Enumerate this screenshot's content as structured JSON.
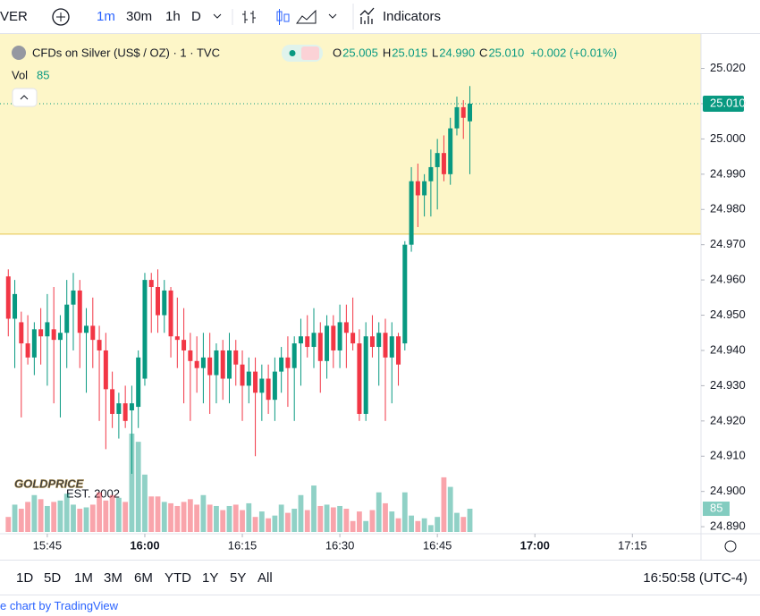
{
  "toolbar": {
    "symbol_cut": "VER",
    "intervals": [
      "1m",
      "30m",
      "1h",
      "D"
    ],
    "indicators": "Indicators"
  },
  "legend": {
    "title": "CFDs on Silver (US$ / OZ) · 1 · TVC",
    "o_key": "O",
    "o": "25.005",
    "h_key": "H",
    "h": "25.015",
    "l_key": "L",
    "l": "24.990",
    "c_key": "C",
    "c": "25.010",
    "change": "+0.002 (+0.01%)",
    "vol_key": "Vol"
  },
  "watermark": {
    "name": "GOLDPRICE",
    "est": "EST. 2002"
  },
  "ranges": [
    "1D",
    "5D",
    "1M",
    "3M",
    "6M",
    "YTD",
    "1Y",
    "5Y",
    "All"
  ],
  "clock": "16:50:58 (UTC-4)",
  "footer": "e chart by TradingView",
  "chart_data": {
    "type": "candlestick",
    "x": [
      "15:39",
      "15:40",
      "15:41",
      "15:42",
      "15:43",
      "15:44",
      "15:45",
      "15:46",
      "15:47",
      "15:48",
      "15:49",
      "15:50",
      "15:51",
      "15:52",
      "15:53",
      "15:54",
      "15:55",
      "15:56",
      "15:57",
      "15:58",
      "15:59",
      "16:00",
      "16:01",
      "16:02",
      "16:03",
      "16:04",
      "16:05",
      "16:06",
      "16:07",
      "16:08",
      "16:09",
      "16:10",
      "16:11",
      "16:12",
      "16:13",
      "16:14",
      "16:15",
      "16:16",
      "16:17",
      "16:18",
      "16:19",
      "16:20",
      "16:21",
      "16:22",
      "16:23",
      "16:24",
      "16:25",
      "16:26",
      "16:27",
      "16:28",
      "16:29",
      "16:30",
      "16:31",
      "16:32",
      "16:33",
      "16:34",
      "16:35",
      "16:36",
      "16:37",
      "16:38",
      "16:39",
      "16:40",
      "16:41",
      "16:42",
      "16:43",
      "16:44",
      "16:45",
      "16:46",
      "16:47",
      "16:48",
      "16:49",
      "16:50"
    ],
    "open": [
      24.961,
      24.949,
      24.948,
      24.942,
      24.938,
      24.946,
      24.944,
      24.946,
      24.943,
      24.945,
      24.953,
      24.957,
      24.945,
      24.947,
      24.943,
      24.94,
      24.929,
      24.922,
      24.925,
      24.923,
      24.924,
      24.932,
      24.96,
      24.958,
      24.95,
      24.957,
      24.944,
      24.943,
      24.94,
      24.937,
      24.935,
      24.938,
      24.933,
      24.94,
      24.932,
      24.94,
      24.936,
      24.93,
      24.934,
      24.928,
      24.932,
      24.926,
      24.934,
      24.938,
      24.935,
      24.942,
      24.944,
      24.941,
      24.945,
      24.937,
      24.947,
      24.94,
      24.948,
      24.945,
      24.942,
      24.922,
      24.944,
      24.941,
      24.945,
      24.938,
      24.944,
      24.942,
      24.97,
      24.988,
      24.984,
      24.988,
      24.992,
      24.996,
      24.99,
      25.003,
      25.009,
      25.005
    ],
    "high": [
      24.963,
      24.96,
      24.951,
      24.95,
      24.948,
      24.952,
      24.956,
      24.958,
      24.95,
      24.96,
      24.962,
      24.96,
      24.952,
      24.955,
      24.947,
      24.945,
      24.934,
      24.928,
      24.93,
      24.93,
      24.94,
      24.962,
      24.962,
      24.963,
      24.96,
      24.958,
      24.955,
      24.952,
      24.945,
      24.944,
      24.945,
      24.945,
      24.942,
      24.943,
      24.945,
      24.943,
      24.94,
      24.938,
      24.938,
      24.936,
      24.936,
      24.938,
      24.941,
      24.944,
      24.944,
      24.949,
      24.95,
      24.952,
      24.948,
      24.95,
      24.95,
      24.953,
      24.953,
      24.955,
      24.946,
      24.948,
      24.95,
      24.948,
      24.949,
      24.948,
      24.945,
      24.971,
      24.992,
      24.993,
      24.99,
      24.997,
      25.0,
      25.001,
      25.006,
      25.012,
      25.011,
      25.015
    ],
    "low": [
      24.944,
      24.935,
      24.921,
      24.936,
      24.933,
      24.936,
      24.93,
      24.925,
      24.921,
      24.935,
      24.94,
      24.935,
      24.928,
      24.935,
      24.92,
      24.912,
      24.918,
      24.915,
      24.918,
      24.905,
      24.918,
      24.93,
      24.945,
      24.945,
      24.945,
      24.938,
      24.935,
      24.925,
      24.92,
      24.928,
      24.925,
      24.922,
      24.925,
      24.926,
      24.925,
      24.93,
      24.92,
      24.925,
      24.91,
      24.92,
      24.922,
      24.92,
      24.928,
      24.924,
      24.92,
      24.93,
      24.938,
      24.935,
      24.928,
      24.932,
      24.935,
      24.935,
      24.935,
      24.94,
      24.92,
      24.92,
      24.938,
      24.93,
      24.92,
      24.925,
      24.93,
      24.94,
      24.968,
      24.975,
      24.978,
      24.978,
      24.98,
      24.988,
      24.987,
      25.001,
      25.0,
      24.99
    ],
    "close": [
      24.949,
      24.956,
      24.942,
      24.938,
      24.946,
      24.944,
      24.948,
      24.943,
      24.945,
      24.953,
      24.957,
      24.945,
      24.947,
      24.943,
      24.94,
      24.929,
      24.922,
      24.925,
      24.92,
      24.925,
      24.938,
      24.96,
      24.958,
      24.95,
      24.957,
      24.944,
      24.943,
      24.94,
      24.937,
      24.935,
      24.938,
      24.933,
      24.94,
      24.932,
      24.94,
      24.936,
      24.93,
      24.934,
      24.928,
      24.932,
      24.926,
      24.934,
      24.938,
      24.935,
      24.942,
      24.944,
      24.941,
      24.945,
      24.937,
      24.947,
      24.94,
      24.948,
      24.945,
      24.942,
      24.922,
      24.944,
      24.941,
      24.945,
      24.938,
      24.944,
      24.936,
      24.97,
      24.988,
      24.984,
      24.988,
      24.992,
      24.996,
      24.99,
      25.003,
      25.009,
      25.006,
      25.01
    ],
    "volume": [
      55,
      100,
      85,
      110,
      135,
      120,
      95,
      110,
      115,
      140,
      100,
      85,
      90,
      100,
      145,
      115,
      135,
      125,
      110,
      360,
      330,
      210,
      130,
      130,
      110,
      105,
      95,
      110,
      120,
      100,
      135,
      100,
      95,
      80,
      95,
      100,
      80,
      105,
      55,
      75,
      50,
      60,
      100,
      70,
      85,
      135,
      80,
      170,
      95,
      100,
      90,
      95,
      85,
      40,
      75,
      40,
      80,
      145,
      105,
      75,
      50,
      145,
      60,
      40,
      50,
      25,
      55,
      200,
      165,
      70,
      55,
      85
    ],
    "up_color": "#089981",
    "down_color": "#f23645",
    "ylim": [
      24.888,
      25.028
    ],
    "yticks": [
      {
        "value": 24.89,
        "label": "24.890"
      },
      {
        "value": 24.9,
        "label": "24.900"
      },
      {
        "value": 24.91,
        "label": "24.910"
      },
      {
        "value": 24.92,
        "label": "24.920"
      },
      {
        "value": 24.93,
        "label": "24.930"
      },
      {
        "value": 24.94,
        "label": "24.940"
      },
      {
        "value": 24.95,
        "label": "24.950"
      },
      {
        "value": 24.96,
        "label": "24.960"
      },
      {
        "value": 24.97,
        "label": "24.970"
      },
      {
        "value": 24.98,
        "label": "24.980"
      },
      {
        "value": 24.99,
        "label": "24.990"
      },
      {
        "value": 25.0,
        "label": "25.000"
      },
      {
        "value": 25.01,
        "label": "25.010"
      },
      {
        "value": 25.02,
        "label": "25.020"
      }
    ],
    "xlim": [
      "15:38",
      "17:25"
    ],
    "xticks": [
      "15:45",
      "16:00",
      "16:15",
      "16:30",
      "16:45",
      "17:00",
      "17:15"
    ],
    "volume_lim": [
      0,
      1800
    ],
    "last_price": {
      "value": 25.01,
      "label": "25.010"
    },
    "highlight_from": 24.973,
    "highlight_color": "#fdf6c8"
  }
}
